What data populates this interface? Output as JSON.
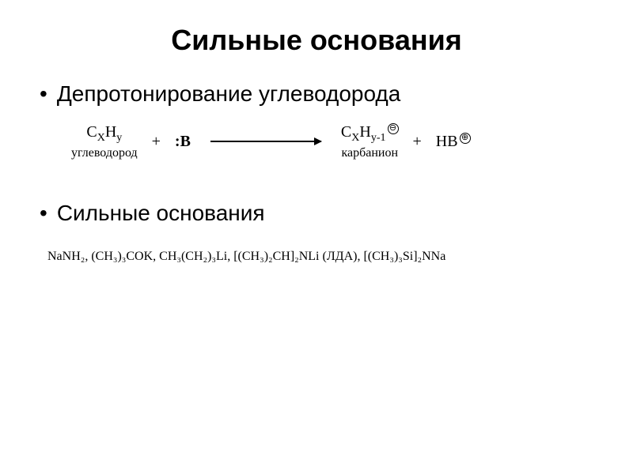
{
  "title": "Сильные основания",
  "bullets": {
    "first": "Депротонирование углеводорода",
    "second": "Сильные основания"
  },
  "equation": {
    "reactant1": {
      "formula_c": "C",
      "formula_x": "X",
      "formula_h": "H",
      "formula_y": "y",
      "label": "углеводород"
    },
    "base": ":B",
    "product1": {
      "formula_c": "C",
      "formula_x": "X",
      "formula_h": "H",
      "formula_y1": "y-1",
      "charge": "⊖",
      "label": "карбанион"
    },
    "product2": {
      "formula": "HB",
      "charge": "⊕"
    },
    "plus": "+"
  },
  "bases_list": "NaNH₂,    (CH₃)₃COK,    CH₃(CH₂)₃Li,    [(CH₃)₂CH]₂NLi (ЛДА),    [(CH₃)₃Si]₂NNa",
  "colors": {
    "background": "#ffffff",
    "text": "#000000"
  },
  "fonts": {
    "title_size": 36,
    "bullet_size": 28,
    "equation_size": 20,
    "bases_size": 16
  }
}
